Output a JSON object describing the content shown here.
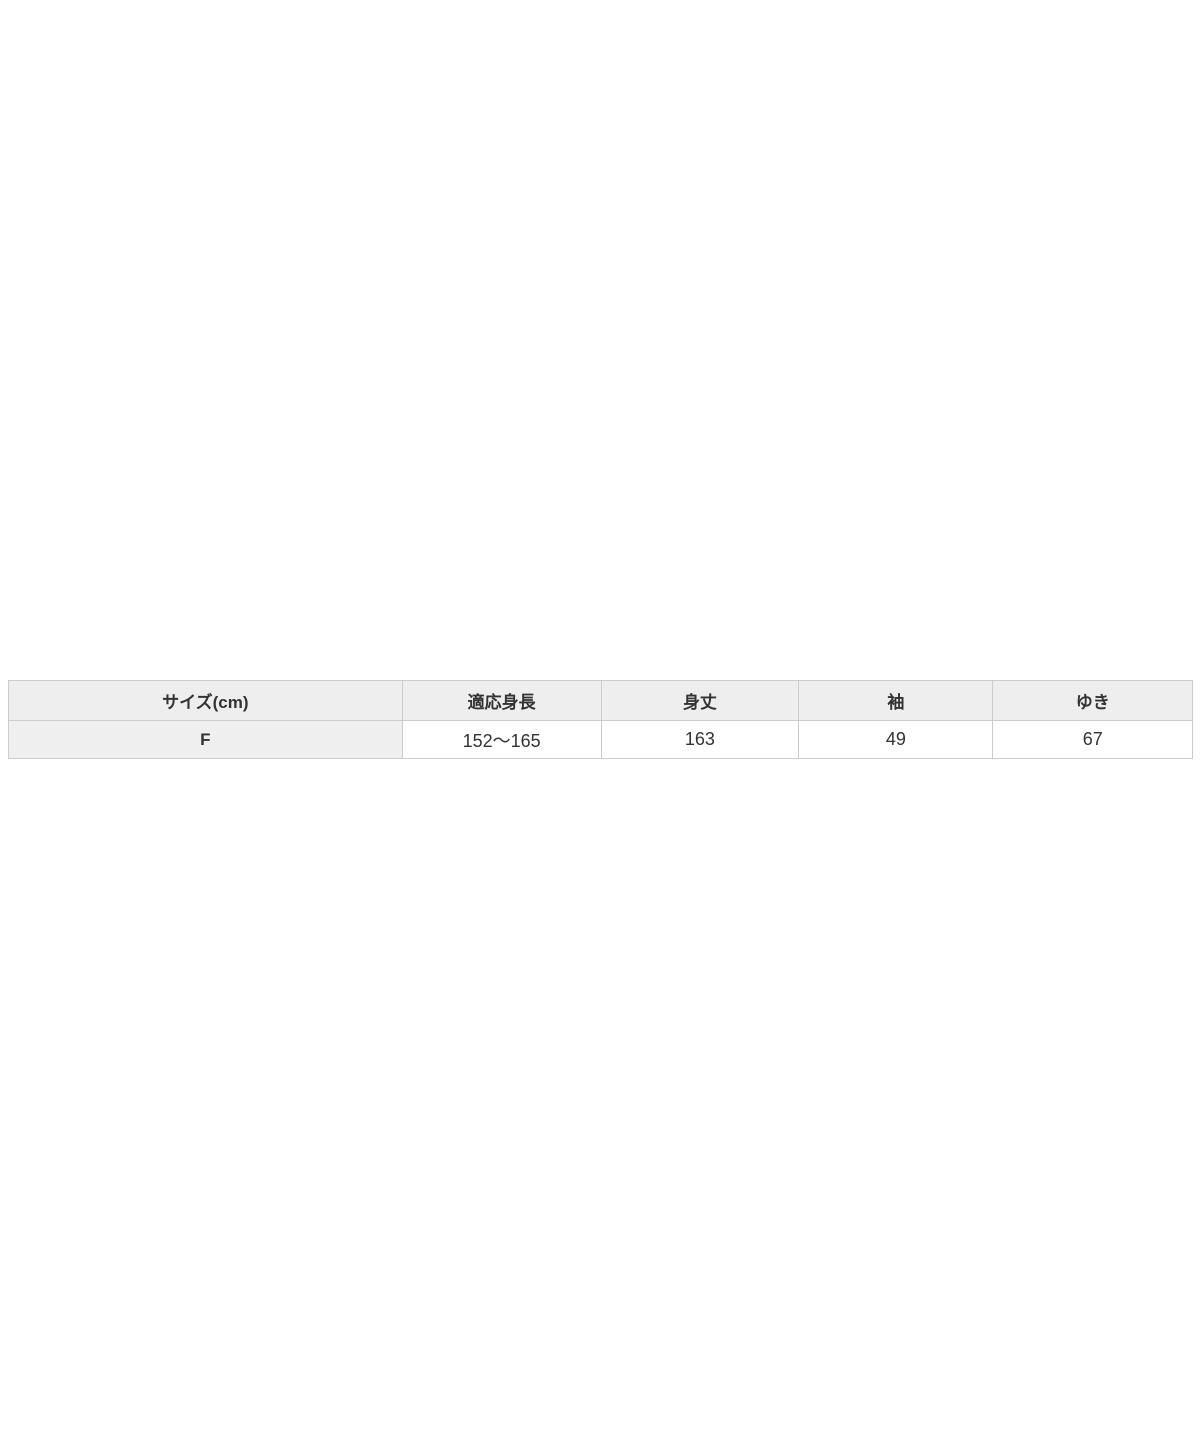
{
  "page": {
    "background": "#ffffff"
  },
  "size_table": {
    "headers": [
      "サイズ(cm)",
      "適応身長",
      "身丈",
      "袖",
      "ゆき"
    ],
    "row": [
      "F",
      "152〜165",
      "163",
      "49",
      "67"
    ],
    "colors": {
      "header_bg": "#eeeeee",
      "row_label_bg": "#efefef",
      "cell_bg": "#ffffff",
      "border": "#cccccc",
      "text": "#333333"
    }
  },
  "chart_data": {
    "type": "table",
    "columns": [
      "サイズ(cm)",
      "適応身長",
      "身丈",
      "袖",
      "ゆき"
    ],
    "rows": [
      [
        "F",
        "152〜165",
        "163",
        "49",
        "67"
      ]
    ],
    "notes": "Garment size specification table: size F, fits height 152-165 cm, body length 163, sleeve 49, yuki (sleeve span) 67"
  }
}
